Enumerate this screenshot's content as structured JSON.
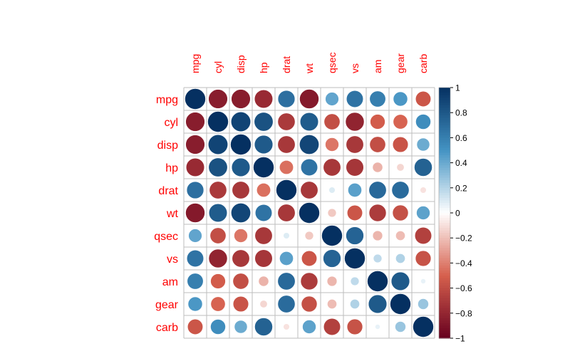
{
  "chart_data": {
    "type": "heatmap",
    "subtype": "correlation-circle-matrix",
    "variables": [
      "mpg",
      "cyl",
      "disp",
      "hp",
      "drat",
      "wt",
      "qsec",
      "vs",
      "am",
      "gear",
      "carb"
    ],
    "matrix": [
      [
        1.0,
        -0.85,
        -0.85,
        -0.78,
        0.68,
        -0.87,
        0.42,
        0.66,
        0.6,
        0.48,
        -0.55
      ],
      [
        -0.85,
        1.0,
        0.9,
        0.83,
        -0.7,
        0.78,
        -0.59,
        -0.81,
        -0.52,
        -0.49,
        0.53
      ],
      [
        -0.85,
        0.9,
        1.0,
        0.79,
        -0.71,
        0.89,
        -0.43,
        -0.71,
        -0.59,
        -0.56,
        0.39
      ],
      [
        -0.78,
        0.83,
        0.79,
        1.0,
        -0.45,
        0.66,
        -0.71,
        -0.72,
        -0.24,
        -0.13,
        0.75
      ],
      [
        0.68,
        -0.7,
        -0.71,
        -0.45,
        1.0,
        -0.71,
        0.09,
        0.44,
        0.71,
        0.7,
        -0.09
      ],
      [
        -0.87,
        0.78,
        0.89,
        0.66,
        -0.71,
        1.0,
        -0.17,
        -0.55,
        -0.69,
        -0.58,
        0.43
      ],
      [
        0.42,
        -0.59,
        -0.43,
        -0.71,
        0.09,
        -0.17,
        1.0,
        0.74,
        -0.23,
        -0.21,
        -0.66
      ],
      [
        0.66,
        -0.81,
        -0.71,
        -0.72,
        0.44,
        -0.55,
        0.74,
        1.0,
        0.17,
        0.21,
        -0.57
      ],
      [
        0.6,
        -0.52,
        -0.59,
        -0.24,
        0.71,
        -0.69,
        -0.23,
        0.17,
        1.0,
        0.79,
        0.06
      ],
      [
        0.48,
        -0.49,
        -0.56,
        -0.13,
        0.7,
        -0.58,
        -0.21,
        0.21,
        0.79,
        1.0,
        0.27
      ],
      [
        -0.55,
        0.53,
        0.39,
        0.75,
        -0.09,
        0.43,
        -0.66,
        -0.57,
        0.06,
        0.27,
        1.0
      ]
    ],
    "range": [
      -1,
      1
    ],
    "colorbar": {
      "ticks": [
        1,
        0.8,
        0.6,
        0.4,
        0.2,
        0,
        -0.2,
        -0.4,
        -0.6,
        -0.8,
        -1
      ],
      "tick_labels": [
        "1",
        "0.8",
        "0.6",
        "0.4",
        "0.2",
        "0",
        "−0.2",
        "−0.4",
        "−0.6",
        "−0.8",
        "−1"
      ]
    },
    "colors": {
      "negative": "#67001F",
      "mid_negative": "#D6604D",
      "zero": "#FFFFFF",
      "mid_positive": "#4393C3",
      "positive": "#053061",
      "label": "#FF0000",
      "grid": "#BEBEBE"
    },
    "title": "",
    "xlabel": "",
    "ylabel": "",
    "legend": "right"
  }
}
